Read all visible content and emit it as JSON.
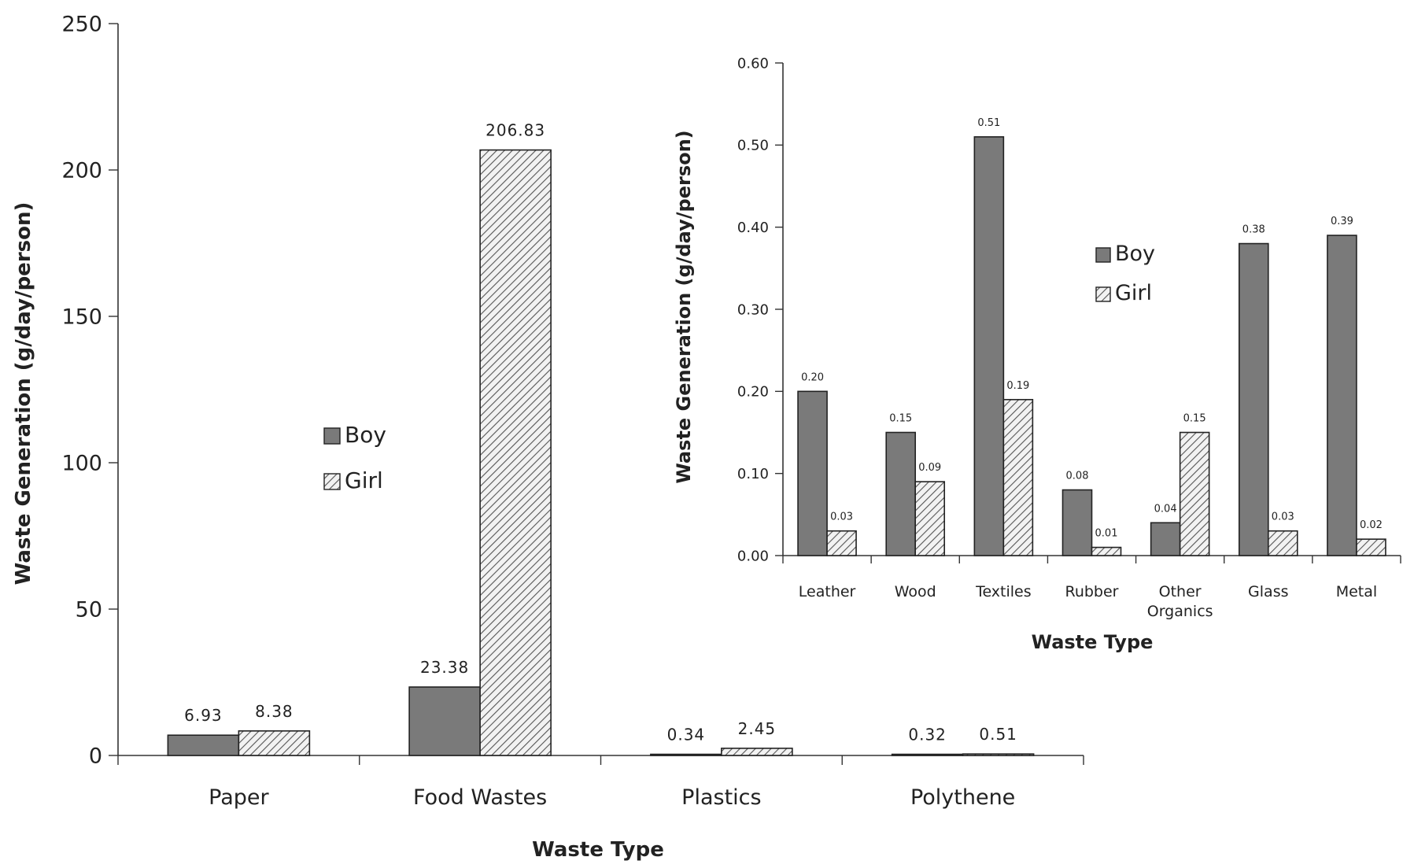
{
  "chart_data": [
    {
      "type": "bar",
      "xlabel": "Waste Type",
      "ylabel": "Waste Generation (g/day/person)",
      "categories": [
        "Paper",
        "Food Wastes",
        "Plastics",
        "Polythene"
      ],
      "ylim": [
        0,
        250
      ],
      "yticks": [
        "0",
        "50",
        "100",
        "150",
        "200",
        "250"
      ],
      "series": [
        {
          "name": "Boy",
          "values": [
            6.93,
            23.38,
            0.34,
            0.32
          ],
          "labels": [
            "6.93",
            "23.38",
            "0.34",
            "0.32"
          ],
          "pattern": "solid-grey"
        },
        {
          "name": "Girl",
          "values": [
            8.38,
            206.83,
            2.45,
            0.51
          ],
          "labels": [
            "8.38",
            "206.83",
            "2.45",
            "0.51"
          ],
          "pattern": "diagonal-hatch"
        }
      ],
      "legend": "center"
    },
    {
      "type": "bar",
      "xlabel": "Waste Type",
      "ylabel": "Waste Generation (g/day/person)",
      "categories": [
        "Leather",
        "Wood",
        "Textiles",
        "Rubber",
        "Other Organics",
        "Glass",
        "Metal"
      ],
      "category_lines": [
        [
          "Leather"
        ],
        [
          "Wood"
        ],
        [
          "Textiles"
        ],
        [
          "Rubber"
        ],
        [
          "Other",
          "Organics"
        ],
        [
          "Glass"
        ],
        [
          "Metal"
        ]
      ],
      "ylim": [
        0,
        0.6
      ],
      "yticks": [
        "0.00",
        "0.10",
        "0.20",
        "0.30",
        "0.40",
        "0.50",
        "0.60"
      ],
      "series": [
        {
          "name": "Boy",
          "values": [
            0.2,
            0.15,
            0.51,
            0.08,
            0.04,
            0.38,
            0.39
          ],
          "labels": [
            "0.20",
            "0.15",
            "0.51",
            "0.08",
            "0.04",
            "0.38",
            "0.39"
          ],
          "pattern": "solid-grey"
        },
        {
          "name": "Girl",
          "values": [
            0.03,
            0.09,
            0.19,
            0.01,
            0.15,
            0.03,
            0.02
          ],
          "labels": [
            "0.03",
            "0.09",
            "0.19",
            "0.01",
            "0.15",
            "0.03",
            "0.02"
          ],
          "pattern": "diagonal-hatch"
        }
      ],
      "legend": "right"
    }
  ],
  "colors": {
    "boy_fill": "#7a7a7a",
    "hatch_line": "#555555",
    "hatch_bg": "#f2f2f2",
    "axis": "#333333",
    "text": "#222222"
  }
}
